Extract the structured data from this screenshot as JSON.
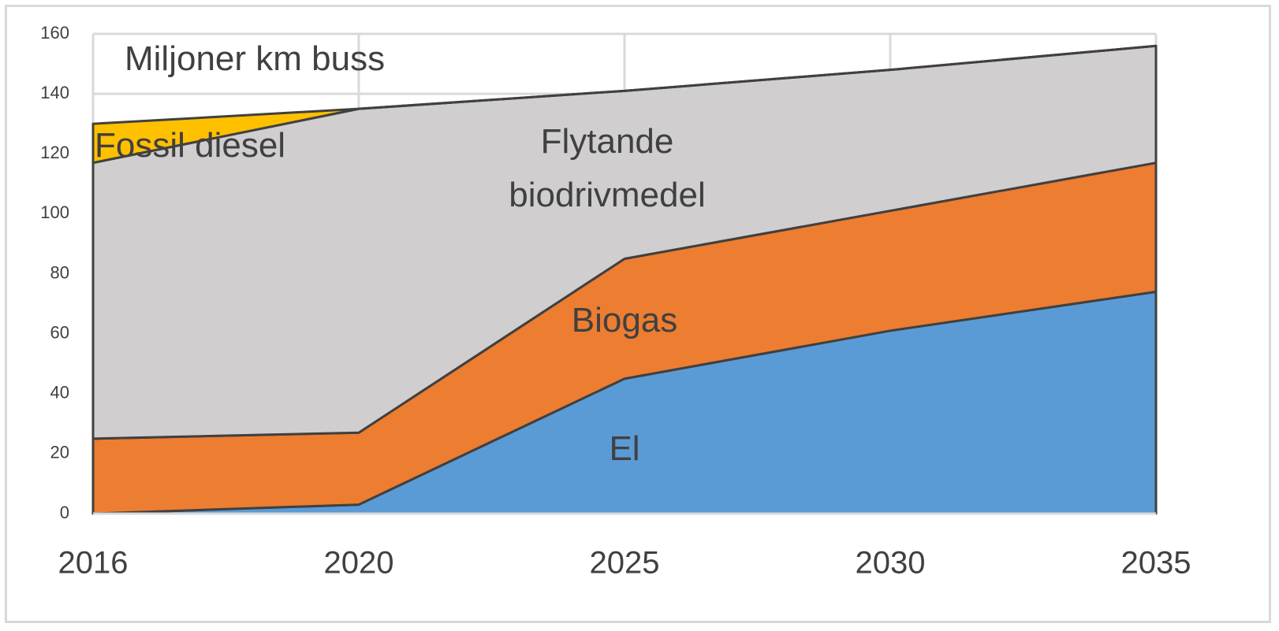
{
  "chart_data": {
    "type": "stacked_area",
    "title": "Miljoner km buss",
    "categories": [
      "2016",
      "2020",
      "2025",
      "2030",
      "2035"
    ],
    "series": [
      {
        "name": "El",
        "color": "#5b9bd5",
        "values": [
          0,
          3,
          45,
          61,
          74
        ]
      },
      {
        "name": "Biogas",
        "color": "#ed7d31",
        "values": [
          25,
          24,
          40,
          40,
          43
        ]
      },
      {
        "name": "Flytande biodrivmedel",
        "color": "#d0cece",
        "values": [
          92,
          108,
          56,
          47,
          39
        ]
      },
      {
        "name": "Fossil diesel",
        "color": "#ffc000",
        "values": [
          13,
          0,
          0,
          0,
          0
        ]
      }
    ],
    "ylim": [
      0,
      160
    ],
    "yticks": [
      0,
      20,
      40,
      60,
      80,
      100,
      120,
      140,
      160
    ],
    "grid": true
  }
}
